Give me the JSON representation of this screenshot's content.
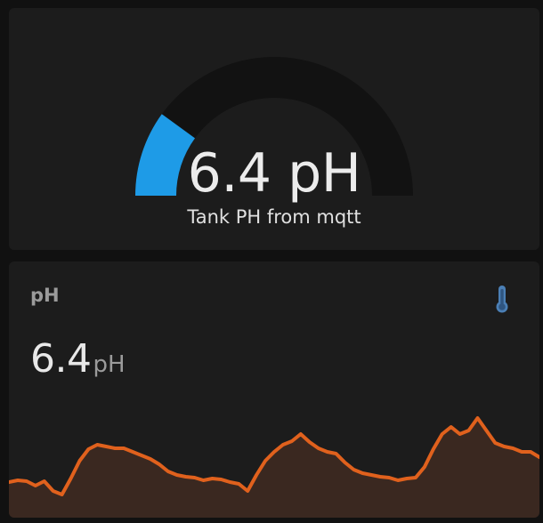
{
  "gauge": {
    "value_text": "6.4 pH",
    "name": "Tank PH from mqtt",
    "level_fraction": 0.2,
    "colors": {
      "fill": "#1e9be7",
      "track": "#121212"
    }
  },
  "sensor": {
    "name": "pH",
    "value": "6.4",
    "unit": "pH",
    "icon": "thermometer-icon",
    "icon_color": "#4b7fb5",
    "line_color": "#e0611d",
    "area_color": "#3a2820",
    "history": [
      0.28,
      0.3,
      0.29,
      0.24,
      0.29,
      0.18,
      0.14,
      0.32,
      0.52,
      0.65,
      0.7,
      0.68,
      0.66,
      0.66,
      0.62,
      0.58,
      0.54,
      0.48,
      0.4,
      0.36,
      0.34,
      0.33,
      0.3,
      0.32,
      0.31,
      0.28,
      0.26,
      0.18,
      0.36,
      0.52,
      0.62,
      0.7,
      0.74,
      0.82,
      0.73,
      0.66,
      0.62,
      0.6,
      0.5,
      0.42,
      0.38,
      0.36,
      0.34,
      0.33,
      0.3,
      0.32,
      0.33,
      0.45,
      0.65,
      0.82,
      0.9,
      0.82,
      0.86,
      1.0,
      0.86,
      0.72,
      0.68,
      0.66,
      0.62,
      0.62,
      0.56
    ]
  }
}
